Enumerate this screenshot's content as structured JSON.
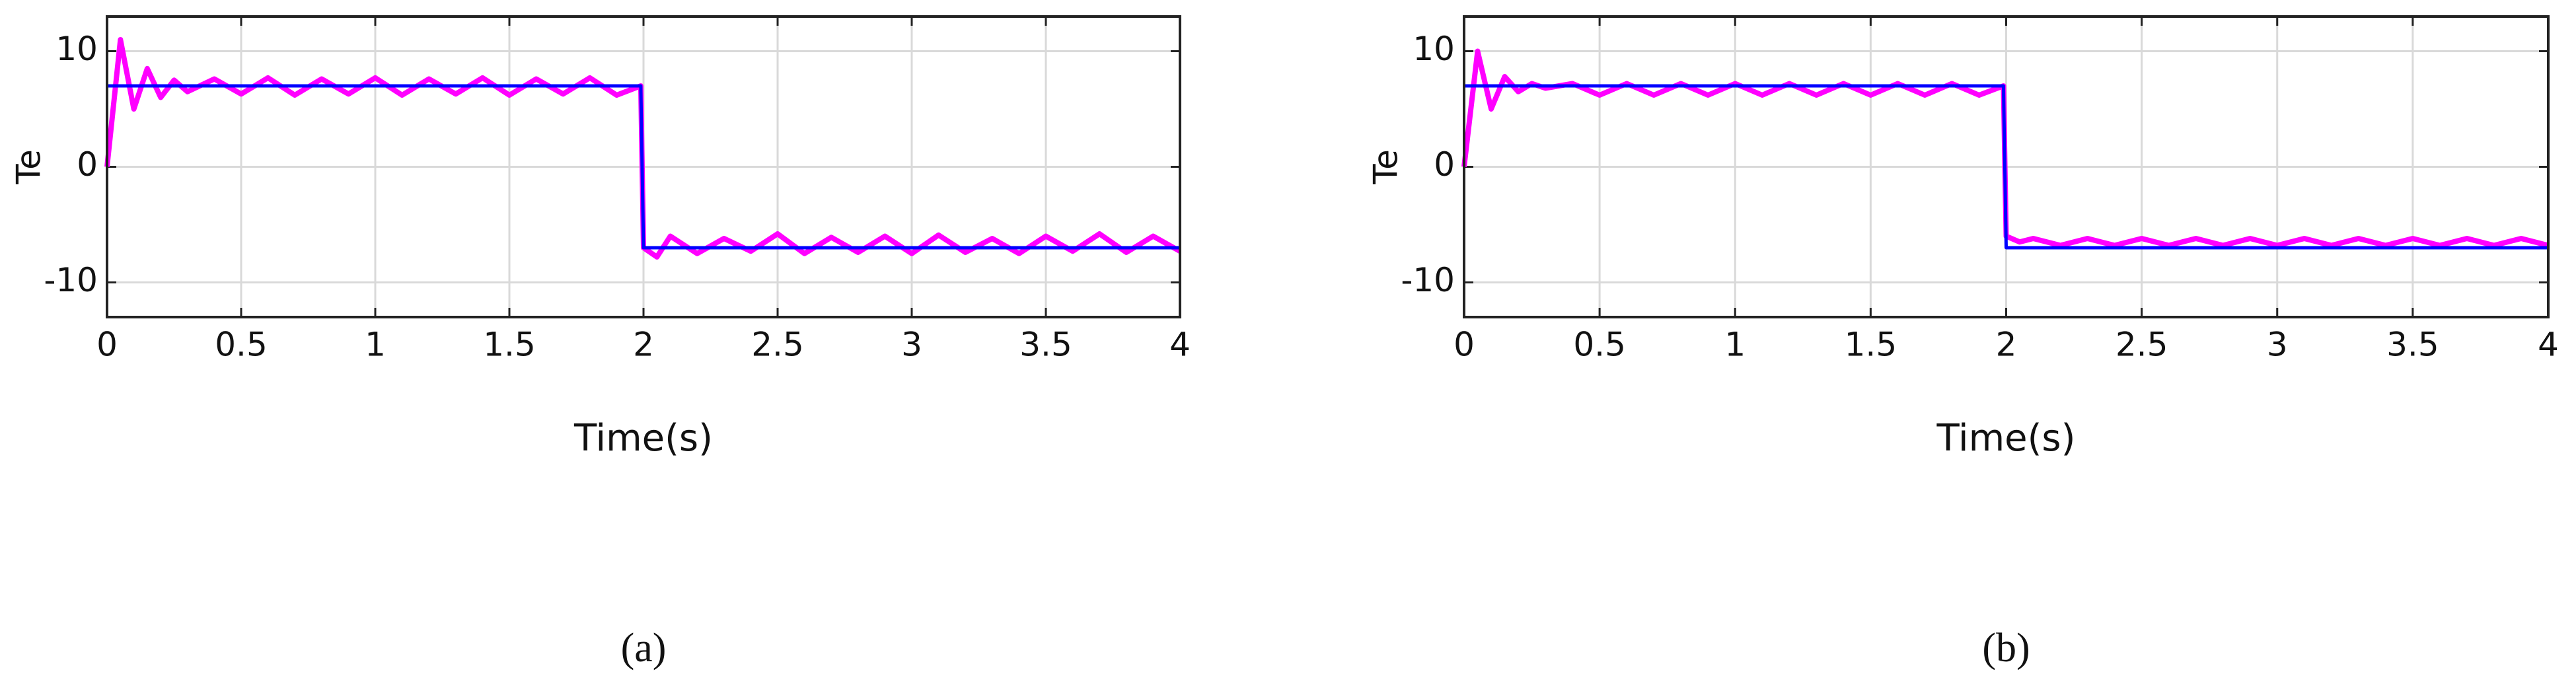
{
  "chart_data": [
    {
      "type": "line",
      "caption": "(a)",
      "x_label": "Time(s)",
      "y_label": "Te",
      "x": [
        0,
        0.05,
        0.1,
        0.15,
        0.2,
        0.25,
        0.3,
        0.4,
        0.5,
        0.6,
        0.7,
        0.8,
        0.9,
        1.0,
        1.1,
        1.2,
        1.3,
        1.4,
        1.5,
        1.6,
        1.7,
        1.8,
        1.9,
        1.99,
        2,
        2.05,
        2.1,
        2.2,
        2.3,
        2.4,
        2.5,
        2.6,
        2.7,
        2.8,
        2.9,
        3.0,
        3.1,
        3.2,
        3.3,
        3.4,
        3.5,
        3.6,
        3.7,
        3.8,
        3.9,
        4.0
      ],
      "series": [
        {
          "color": "#ff00ff",
          "values": [
            0,
            11,
            5,
            8.5,
            6,
            7.5,
            6.5,
            7.6,
            6.3,
            7.7,
            6.2,
            7.6,
            6.3,
            7.7,
            6.2,
            7.6,
            6.3,
            7.7,
            6.2,
            7.6,
            6.3,
            7.7,
            6.2,
            7,
            -7,
            -7.8,
            -6,
            -7.5,
            -6.2,
            -7.3,
            -5.8,
            -7.5,
            -6.1,
            -7.4,
            -6,
            -7.5,
            -5.9,
            -7.4,
            -6.2,
            -7.5,
            -6,
            -7.3,
            -5.8,
            -7.4,
            -6,
            -7.3
          ]
        },
        {
          "color": "#0000ff",
          "values": [
            7,
            7,
            7,
            7,
            7,
            7,
            7,
            7,
            7,
            7,
            7,
            7,
            7,
            7,
            7,
            7,
            7,
            7,
            7,
            7,
            7,
            7,
            7,
            7,
            -7,
            -7,
            -7,
            -7,
            -7,
            -7,
            -7,
            -7,
            -7,
            -7,
            -7,
            -7,
            -7,
            -7,
            -7,
            -7,
            -7,
            -7,
            -7,
            -7,
            -7,
            -7
          ]
        }
      ],
      "xlim": [
        0,
        4
      ],
      "ylim": [
        -13,
        13
      ],
      "xticks": [
        0,
        0.5,
        1,
        1.5,
        2,
        2.5,
        3,
        3.5,
        4
      ],
      "yticks": [
        -10,
        0,
        10
      ],
      "grid": true
    },
    {
      "type": "line",
      "caption": "(b)",
      "x_label": "Time(s)",
      "y_label": "Te",
      "x": [
        0,
        0.05,
        0.1,
        0.15,
        0.2,
        0.25,
        0.3,
        0.4,
        0.5,
        0.6,
        0.7,
        0.8,
        0.9,
        1.0,
        1.1,
        1.2,
        1.3,
        1.4,
        1.5,
        1.6,
        1.7,
        1.8,
        1.9,
        1.99,
        2,
        2.05,
        2.1,
        2.2,
        2.3,
        2.4,
        2.5,
        2.6,
        2.7,
        2.8,
        2.9,
        3.0,
        3.1,
        3.2,
        3.3,
        3.4,
        3.5,
        3.6,
        3.7,
        3.8,
        3.9,
        4.0
      ],
      "series": [
        {
          "color": "#ff00ff",
          "values": [
            0,
            10,
            5,
            7.8,
            6.5,
            7.2,
            6.8,
            7.2,
            6.2,
            7.2,
            6.2,
            7.2,
            6.2,
            7.2,
            6.2,
            7.2,
            6.2,
            7.2,
            6.2,
            7.2,
            6.2,
            7.2,
            6.2,
            7,
            -6,
            -6.5,
            -6.2,
            -6.8,
            -6.2,
            -6.8,
            -6.2,
            -6.8,
            -6.2,
            -6.8,
            -6.2,
            -6.8,
            -6.2,
            -6.8,
            -6.2,
            -6.8,
            -6.2,
            -6.8,
            -6.2,
            -6.8,
            -6.2,
            -6.8
          ]
        },
        {
          "color": "#0000ff",
          "values": [
            7,
            7,
            7,
            7,
            7,
            7,
            7,
            7,
            7,
            7,
            7,
            7,
            7,
            7,
            7,
            7,
            7,
            7,
            7,
            7,
            7,
            7,
            7,
            7,
            -7,
            -7,
            -7,
            -7,
            -7,
            -7,
            -7,
            -7,
            -7,
            -7,
            -7,
            -7,
            -7,
            -7,
            -7,
            -7,
            -7,
            -7,
            -7,
            -7,
            -7,
            -7
          ]
        }
      ],
      "xlim": [
        0,
        4
      ],
      "ylim": [
        -13,
        13
      ],
      "xticks": [
        0,
        0.5,
        1,
        1.5,
        2,
        2.5,
        3,
        3.5,
        4
      ],
      "yticks": [
        -10,
        0,
        10
      ],
      "grid": true
    }
  ]
}
